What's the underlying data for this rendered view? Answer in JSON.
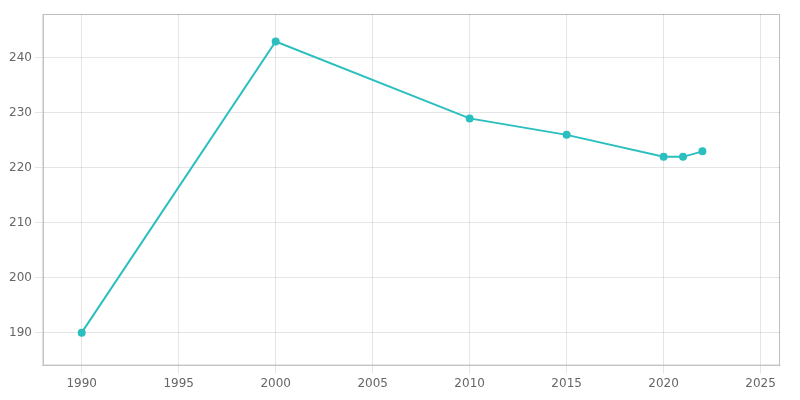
{
  "chart_data": {
    "type": "line",
    "x": [
      1990,
      2000,
      2010,
      2015,
      2020,
      2021,
      2022
    ],
    "values": [
      190,
      243,
      229,
      226,
      222,
      222,
      223
    ],
    "color": "#2bbfbf",
    "marker": "o",
    "xlim": [
      1988,
      2026
    ],
    "ylim": [
      184,
      248
    ],
    "xticks": [
      1990,
      1995,
      2000,
      2005,
      2010,
      2015,
      2020,
      2025
    ],
    "yticks": [
      190,
      200,
      210,
      220,
      230,
      240
    ],
    "grid": true
  }
}
